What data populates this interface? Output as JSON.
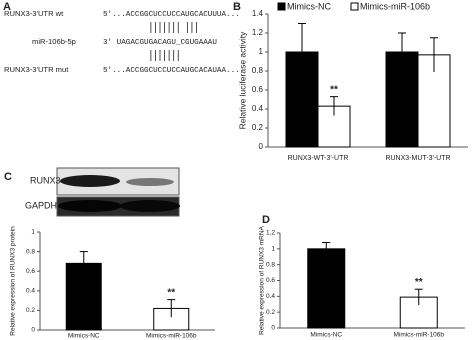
{
  "sequence_panel": {
    "label": "A",
    "rows": [
      {
        "name": "RUNX3-3'UTR wt",
        "sequence": "5'...ACCGGCUCCUCCAUGCACUUUA..."
      },
      {
        "name": "miR-106b-5p",
        "sequence": "3'  UAGACGUGACAGU_CGUGAAAU"
      },
      {
        "name": "RUNX3-3'UTR mut",
        "sequence": "5'...ACCGGCUCCUCCAUGCACAUAA..."
      }
    ]
  },
  "blot": {
    "labels": [
      "RUNX3",
      "GAPDH"
    ]
  },
  "chart_data": [
    {
      "type": "bar",
      "panel_label": "B",
      "y_label": "Relative luciferase activity",
      "categories": [
        "RUNX3-WT-3'-UTR",
        "RUNX3-MUT-3'-UTR"
      ],
      "series": [
        {
          "name": "Mimics-NC",
          "color": "#000000",
          "values": [
            1,
            1
          ],
          "errors": [
            0.3,
            0.2
          ]
        },
        {
          "name": "Mimics-miR-106b",
          "color": "#ffffff",
          "values": [
            0.43,
            0.97
          ],
          "errors": [
            0.1,
            0.18
          ]
        }
      ],
      "ylim": [
        0,
        1.4
      ],
      "yticks": [
        0,
        0.2,
        0.4,
        0.6,
        0.8,
        1,
        1.2,
        1.4
      ],
      "annotation": "**"
    },
    {
      "type": "bar",
      "panel_label": "C",
      "y_label": "Relative expression of RUNX3 protein",
      "categories": [
        "Mimics-NC",
        "Mimics-miR-106b"
      ],
      "values": [
        0.68,
        0.22
      ],
      "errors": [
        0.12,
        0.09
      ],
      "colors": [
        "#000000",
        "#ffffff"
      ],
      "ylim": [
        0,
        1
      ],
      "yticks": [
        0,
        0.2,
        0.4,
        0.6,
        0.8,
        1
      ],
      "annotation": "**"
    },
    {
      "type": "bar",
      "panel_label": "D",
      "y_label": "Relative expression of RUNX3 mRNA",
      "categories": [
        "Mimics-NC",
        "Mimics-miR-106b"
      ],
      "values": [
        1,
        0.39
      ],
      "errors": [
        0.08,
        0.1
      ],
      "colors": [
        "#000000",
        "#ffffff"
      ],
      "ylim": [
        0,
        1.2
      ],
      "yticks": [
        0,
        0.2,
        0.4,
        0.6,
        0.8,
        1,
        1.2
      ],
      "annotation": "**"
    }
  ]
}
